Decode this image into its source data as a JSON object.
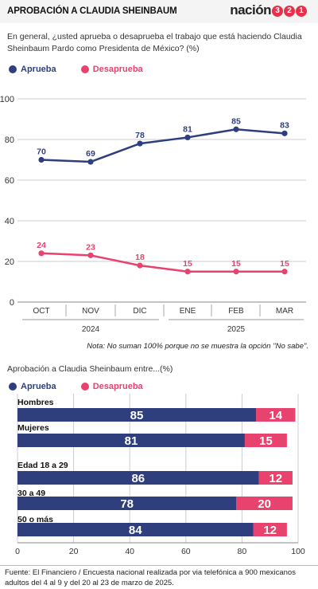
{
  "header": {
    "title": "APROBACIÓN A CLAUDIA SHEINBAUM",
    "logo_text": "nación",
    "logo_digits": [
      "3",
      "2",
      "1"
    ]
  },
  "question": "En general, ¿usted aprueba o desaprueba el trabajo que está haciendo Claudia Sheinbaum Pardo como Presidenta de México?  (%)",
  "legend": {
    "approve": "Aprueba",
    "disapprove": "Desaprueba"
  },
  "colors": {
    "approve": "#2f3f7e",
    "disapprove": "#e8426e",
    "grid": "#cccccc"
  },
  "note": "Nota: No suman 100% porque no se muestra la opción \"No sabe\".",
  "subtitle2": "Aprobación a Claudia Sheinbaum entre...(%)",
  "source": "Fuente: El Financiero /  Encuesta nacional realizada por via telefónica a 900 mexicanos adultos del 4 al 9 y del 20 al 23 de marzo de 2025.",
  "chart_data": [
    {
      "type": "line",
      "categories": [
        "OCT",
        "NOV",
        "DIC",
        "ENE",
        "FEB",
        "MAR"
      ],
      "year_groups": [
        {
          "label": "2024",
          "start": 0,
          "end": 2
        },
        {
          "label": "2025",
          "start": 3,
          "end": 5
        }
      ],
      "series": [
        {
          "name": "Aprueba",
          "color": "#2f3f7e",
          "values": [
            70,
            69,
            78,
            81,
            85,
            83
          ]
        },
        {
          "name": "Desaprueba",
          "color": "#e8426e",
          "values": [
            24,
            23,
            18,
            15,
            15,
            15
          ]
        }
      ],
      "ylim": [
        0,
        100
      ],
      "yticks": [
        0,
        20,
        40,
        60,
        80,
        100
      ],
      "grid": true
    },
    {
      "type": "bar",
      "orientation": "horizontal",
      "stacked": true,
      "categories": [
        "Hombres",
        "Mujeres",
        "Edad 18 a 29",
        "30 a 49",
        "50 o más"
      ],
      "series": [
        {
          "name": "Aprueba",
          "color": "#2f3f7e",
          "values": [
            85,
            81,
            86,
            78,
            84
          ]
        },
        {
          "name": "Desaprueba",
          "color": "#e8426e",
          "values": [
            14,
            15,
            12,
            20,
            12
          ]
        }
      ],
      "xlim": [
        0,
        100
      ],
      "xticks": [
        0,
        20,
        40,
        60,
        80,
        100
      ],
      "grid": true
    }
  ]
}
